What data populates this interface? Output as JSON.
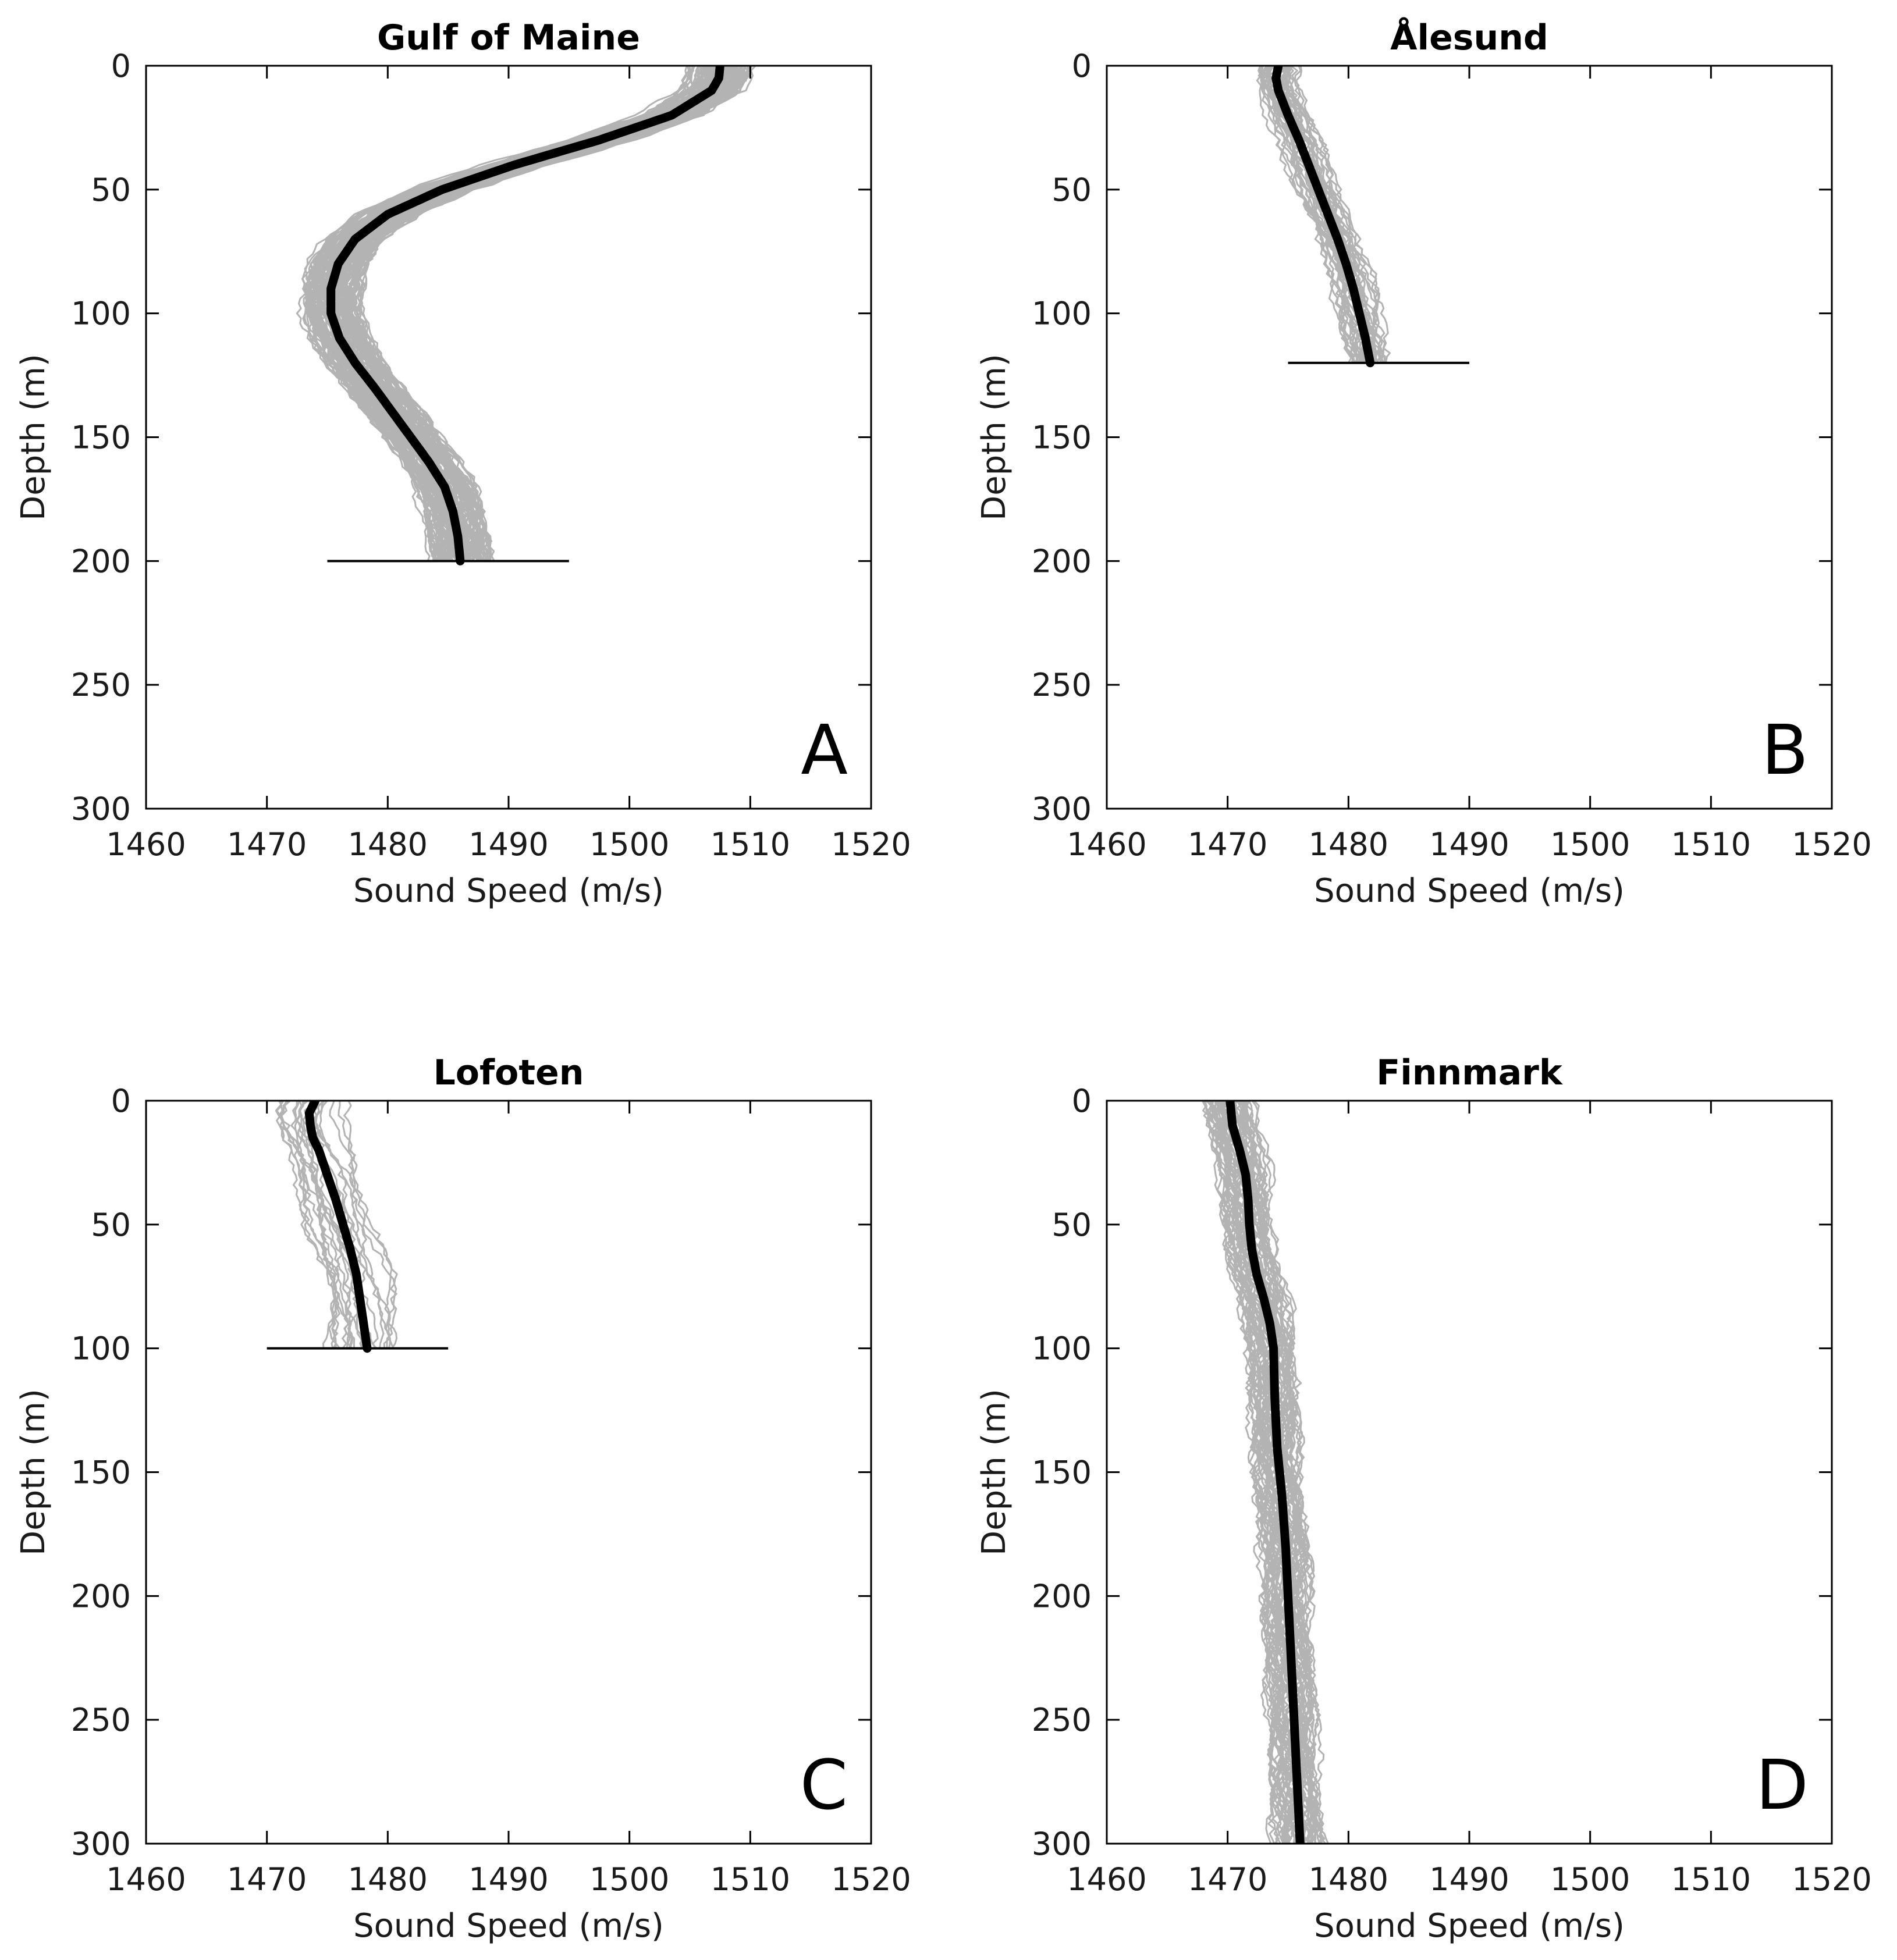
{
  "colors": {
    "mean": "#000000",
    "profiles": "#b3b3b3",
    "axes": "#000000",
    "background": "#ffffff"
  },
  "chart_data": [
    {
      "type": "line",
      "title": "Gulf of Maine",
      "panel_letter": "A",
      "xlabel": "Sound Speed (m/s)",
      "ylabel": "Depth (m)",
      "xlim": [
        1460,
        1520
      ],
      "ylim": [
        0,
        300
      ],
      "y_reversed": true,
      "xticks": [
        1460,
        1470,
        1480,
        1490,
        1500,
        1510,
        1520
      ],
      "yticks": [
        0,
        50,
        100,
        150,
        200,
        250,
        300
      ],
      "bottom_depth": 200,
      "bottom_line_x": [
        1475,
        1495
      ],
      "profile_count": 120,
      "profile_spread": 2.2,
      "series": [
        {
          "name": "mean",
          "depth": [
            0,
            5,
            10,
            20,
            30,
            40,
            50,
            60,
            70,
            80,
            90,
            100,
            110,
            120,
            130,
            140,
            150,
            160,
            170,
            180,
            190,
            200
          ],
          "speed": [
            1507.5,
            1507.4,
            1506.8,
            1503.5,
            1497.5,
            1490.5,
            1484.5,
            1480.0,
            1477.3,
            1475.9,
            1475.3,
            1475.3,
            1476.0,
            1477.3,
            1478.9,
            1480.4,
            1481.9,
            1483.4,
            1484.7,
            1485.4,
            1485.8,
            1486.0
          ]
        }
      ]
    },
    {
      "type": "line",
      "title": "Ålesund",
      "panel_letter": "B",
      "xlabel": "Sound Speed (m/s)",
      "ylabel": "Depth (m)",
      "xlim": [
        1460,
        1520
      ],
      "ylim": [
        0,
        300
      ],
      "y_reversed": true,
      "xticks": [
        1460,
        1470,
        1480,
        1490,
        1500,
        1510,
        1520
      ],
      "yticks": [
        0,
        50,
        100,
        150,
        200,
        250,
        300
      ],
      "bottom_depth": 120,
      "bottom_line_x": [
        1475,
        1490
      ],
      "profile_count": 40,
      "profile_spread": 1.5,
      "series": [
        {
          "name": "mean",
          "depth": [
            0,
            5,
            10,
            20,
            30,
            40,
            50,
            60,
            70,
            80,
            90,
            100,
            110,
            120
          ],
          "speed": [
            1474.2,
            1474.0,
            1474.2,
            1475.0,
            1475.9,
            1476.7,
            1477.5,
            1478.3,
            1479.1,
            1479.8,
            1480.4,
            1480.9,
            1481.4,
            1481.8
          ]
        }
      ]
    },
    {
      "type": "line",
      "title": "Lofoten",
      "panel_letter": "C",
      "xlabel": "Sound Speed (m/s)",
      "ylabel": "Depth (m)",
      "xlim": [
        1460,
        1520
      ],
      "ylim": [
        0,
        300
      ],
      "y_reversed": true,
      "xticks": [
        1460,
        1470,
        1480,
        1490,
        1500,
        1510,
        1520
      ],
      "yticks": [
        0,
        50,
        100,
        150,
        200,
        250,
        300
      ],
      "bottom_depth": 100,
      "bottom_line_x": [
        1470,
        1485
      ],
      "profile_count": 22,
      "profile_spread": 2.6,
      "series": [
        {
          "name": "mean",
          "depth": [
            0,
            5,
            10,
            15,
            20,
            30,
            40,
            50,
            60,
            70,
            80,
            90,
            100
          ],
          "speed": [
            1474.0,
            1473.5,
            1473.6,
            1473.8,
            1474.3,
            1475.0,
            1475.7,
            1476.3,
            1476.9,
            1477.4,
            1477.7,
            1478.0,
            1478.3
          ]
        }
      ]
    },
    {
      "type": "line",
      "title": "Finnmark",
      "panel_letter": "D",
      "xlabel": "Sound Speed (m/s)",
      "ylabel": "Depth (m)",
      "xlim": [
        1460,
        1520
      ],
      "ylim": [
        0,
        300
      ],
      "y_reversed": true,
      "xticks": [
        1460,
        1470,
        1480,
        1490,
        1500,
        1510,
        1520
      ],
      "yticks": [
        0,
        50,
        100,
        150,
        200,
        250,
        300
      ],
      "bottom_depth": null,
      "bottom_line_x": null,
      "profile_count": 55,
      "profile_spread": 1.8,
      "series": [
        {
          "name": "mean",
          "depth": [
            0,
            10,
            20,
            30,
            40,
            50,
            60,
            70,
            80,
            90,
            100,
            120,
            140,
            160,
            180,
            200,
            220,
            240,
            260,
            280,
            300
          ],
          "speed": [
            1470.2,
            1470.4,
            1471.0,
            1471.5,
            1471.7,
            1471.8,
            1472.0,
            1472.4,
            1473.0,
            1473.5,
            1473.8,
            1473.9,
            1474.1,
            1474.5,
            1474.8,
            1475.0,
            1475.2,
            1475.4,
            1475.6,
            1475.8,
            1476.0
          ]
        }
      ]
    }
  ]
}
